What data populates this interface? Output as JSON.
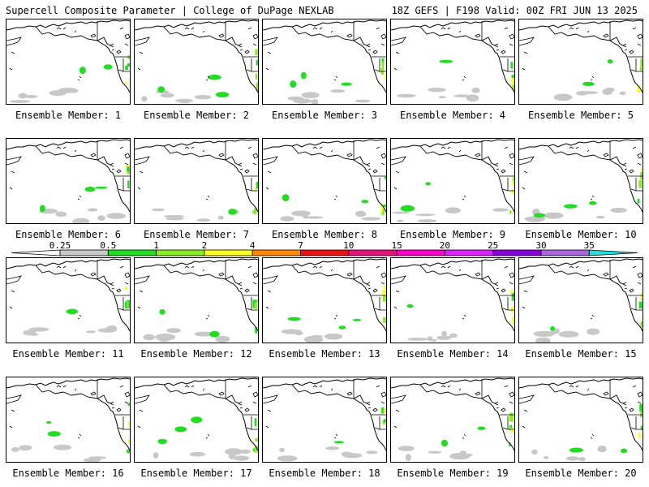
{
  "header": {
    "title": "Supercell Composite Parameter | College of DuPage NEXLAB",
    "run_info": "18Z GEFS | F198 Valid: 00Z FRI JUN 13 2025"
  },
  "panels": [
    {
      "label": "Ensemble Member: 1"
    },
    {
      "label": "Ensemble Member: 2"
    },
    {
      "label": "Ensemble Member: 3"
    },
    {
      "label": "Ensemble Member: 4"
    },
    {
      "label": "Ensemble Member: 5"
    },
    {
      "label": "Ensemble Member: 6"
    },
    {
      "label": "Ensemble Member: 7"
    },
    {
      "label": "Ensemble Member: 8"
    },
    {
      "label": "Ensemble Member: 9"
    },
    {
      "label": "Ensemble Member: 10"
    },
    {
      "label": "Ensemble Member: 11"
    },
    {
      "label": "Ensemble Member: 12"
    },
    {
      "label": "Ensemble Member: 13"
    },
    {
      "label": "Ensemble Member: 14"
    },
    {
      "label": "Ensemble Member: 15"
    },
    {
      "label": "Ensemble Member: 16"
    },
    {
      "label": "Ensemble Member: 17"
    },
    {
      "label": "Ensemble Member: 18"
    },
    {
      "label": "Ensemble Member: 19"
    },
    {
      "label": "Ensemble Member: 20"
    }
  ],
  "colorbar": {
    "thresholds": [
      "0.25",
      "0.5",
      "1",
      "2",
      "4",
      "7",
      "10",
      "15",
      "20",
      "25",
      "30",
      "35"
    ],
    "colors": [
      "#c8c8c8",
      "#22dd22",
      "#88ee22",
      "#ffff22",
      "#ff8800",
      "#ee1111",
      "#e8107a",
      "#ff00cc",
      "#dd22ff",
      "#8800dd",
      "#aa66dd",
      "#22dddd"
    ],
    "open_end_colors": [
      "#ffffff",
      "#22dddd"
    ]
  }
}
